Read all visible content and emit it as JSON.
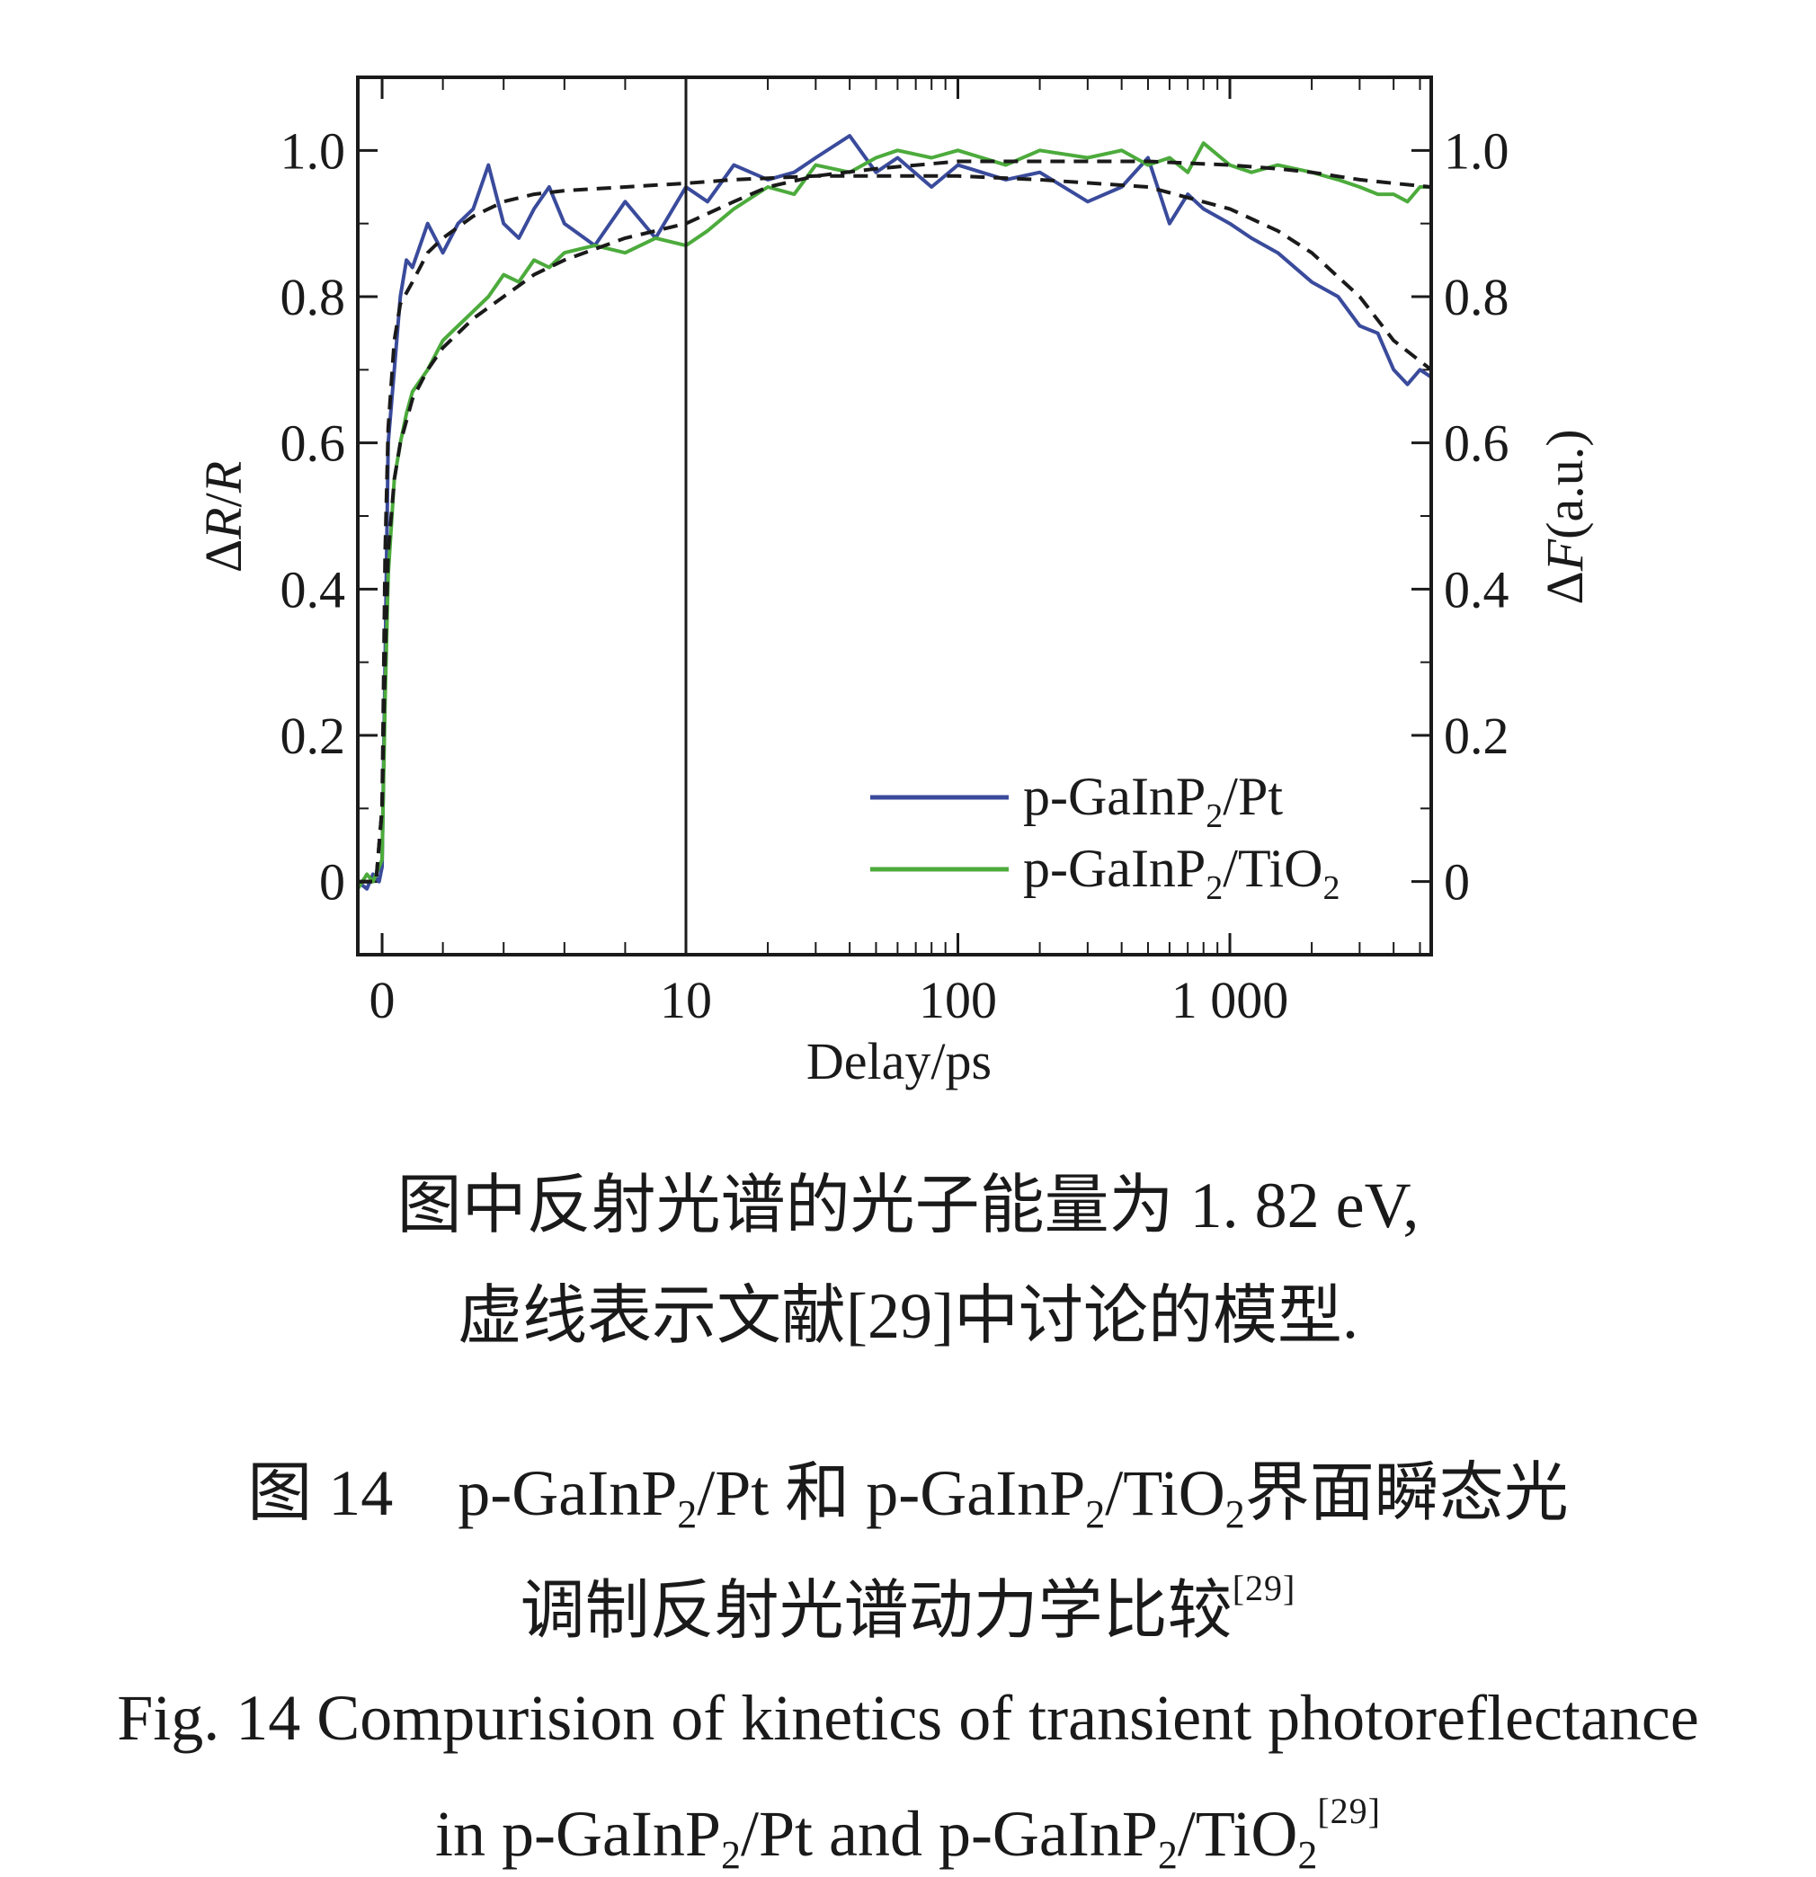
{
  "chart_data": {
    "type": "line",
    "xlabel": "Delay/ps",
    "ylabel_left": {
      "prefix": "Δ",
      "italic": "R",
      "slash": "/",
      "italic2": "R"
    },
    "ylabel_right": {
      "prefix": "Δ",
      "italic": "F",
      "suffix": "(a.u.)"
    },
    "x_axis": {
      "type": "split linear-log",
      "linear_range": [
        -0.8,
        10
      ],
      "log_range": [
        10,
        5500
      ],
      "tick_labels": [
        "0",
        "10",
        "100",
        "1 000"
      ],
      "tick_values": [
        0,
        10,
        100,
        1000
      ]
    },
    "ylim": [
      -0.1,
      1.1
    ],
    "y_ticks": [
      "0",
      "0.2",
      "0.4",
      "0.6",
      "0.8",
      "1.0"
    ],
    "y_tick_values": [
      0,
      0.2,
      0.4,
      0.6,
      0.8,
      1.0
    ],
    "legend_position": "lower-right",
    "series": [
      {
        "name": {
          "a": "p-GaInP",
          "sub": "2",
          "b": "/Pt"
        },
        "color": "#3a4b9c",
        "style": "solid",
        "x": [
          -0.8,
          -0.5,
          -0.3,
          -0.1,
          0.0,
          0.1,
          0.2,
          0.4,
          0.6,
          0.8,
          1.0,
          1.5,
          2.0,
          2.5,
          3.0,
          3.5,
          4.0,
          4.5,
          5.0,
          5.5,
          6.0,
          7.0,
          8.0,
          9.0,
          10,
          12,
          15,
          20,
          25,
          30,
          40,
          50,
          60,
          80,
          100,
          150,
          200,
          300,
          400,
          500,
          600,
          700,
          800,
          1000,
          1200,
          1500,
          2000,
          2500,
          3000,
          3500,
          4000,
          4500,
          5000,
          5500
        ],
        "y": [
          0.0,
          -0.01,
          0.01,
          0.0,
          0.02,
          0.3,
          0.6,
          0.7,
          0.8,
          0.85,
          0.84,
          0.9,
          0.86,
          0.9,
          0.92,
          0.98,
          0.9,
          0.88,
          0.92,
          0.95,
          0.9,
          0.87,
          0.93,
          0.88,
          0.95,
          0.93,
          0.98,
          0.96,
          0.97,
          0.99,
          1.02,
          0.97,
          0.99,
          0.95,
          0.98,
          0.96,
          0.97,
          0.93,
          0.95,
          0.99,
          0.9,
          0.94,
          0.92,
          0.9,
          0.88,
          0.86,
          0.82,
          0.8,
          0.76,
          0.75,
          0.7,
          0.68,
          0.7,
          0.69
        ]
      },
      {
        "name": {
          "a": "p-GaInP",
          "sub": "2",
          "b": "/TiO",
          "sub2": "2"
        },
        "color": "#4cab3c",
        "style": "solid",
        "x": [
          -0.8,
          -0.5,
          -0.3,
          -0.1,
          0.0,
          0.1,
          0.2,
          0.4,
          0.6,
          0.8,
          1.0,
          1.5,
          2.0,
          2.5,
          3.0,
          3.5,
          4.0,
          4.5,
          5.0,
          5.5,
          6.0,
          7.0,
          8.0,
          9.0,
          10,
          12,
          15,
          20,
          25,
          30,
          40,
          50,
          60,
          80,
          100,
          150,
          200,
          300,
          400,
          500,
          600,
          700,
          800,
          1000,
          1200,
          1500,
          2000,
          2500,
          3000,
          3500,
          4000,
          4500,
          5000,
          5500
        ],
        "y": [
          -0.01,
          0.01,
          0.0,
          0.02,
          0.03,
          0.25,
          0.42,
          0.55,
          0.6,
          0.64,
          0.67,
          0.7,
          0.74,
          0.76,
          0.78,
          0.8,
          0.83,
          0.82,
          0.85,
          0.84,
          0.86,
          0.87,
          0.86,
          0.88,
          0.87,
          0.89,
          0.92,
          0.95,
          0.94,
          0.98,
          0.97,
          0.99,
          1.0,
          0.99,
          1.0,
          0.98,
          1.0,
          0.99,
          1.0,
          0.98,
          0.99,
          0.97,
          1.01,
          0.98,
          0.97,
          0.98,
          0.97,
          0.96,
          0.95,
          0.94,
          0.94,
          0.93,
          0.95,
          0.95
        ]
      },
      {
        "name": "",
        "color": "#1a1a1a",
        "style": "dashed",
        "x": [
          -0.8,
          -0.2,
          0.0,
          0.1,
          0.2,
          0.4,
          0.6,
          1.0,
          1.5,
          2.0,
          3.0,
          4.0,
          5.0,
          6.0,
          8.0,
          10,
          15,
          20,
          30,
          50,
          100,
          200,
          500,
          1000,
          1500,
          2000,
          3000,
          4000,
          5500
        ],
        "y": [
          0.0,
          0.0,
          0.1,
          0.45,
          0.62,
          0.74,
          0.79,
          0.82,
          0.86,
          0.88,
          0.91,
          0.93,
          0.94,
          0.945,
          0.95,
          0.955,
          0.96,
          0.962,
          0.965,
          0.965,
          0.965,
          0.96,
          0.95,
          0.92,
          0.89,
          0.86,
          0.8,
          0.74,
          0.7
        ]
      },
      {
        "name": "",
        "color": "#1a1a1a",
        "style": "dashed",
        "x": [
          -0.8,
          -0.2,
          0.0,
          0.1,
          0.2,
          0.4,
          0.6,
          1.0,
          1.5,
          2.0,
          3.0,
          4.0,
          5.0,
          6.0,
          8.0,
          10,
          15,
          20,
          30,
          50,
          100,
          200,
          500,
          1000,
          1500,
          2000,
          3000,
          4000,
          5500
        ],
        "y": [
          0.0,
          0.0,
          0.1,
          0.3,
          0.45,
          0.55,
          0.6,
          0.66,
          0.7,
          0.73,
          0.77,
          0.8,
          0.83,
          0.85,
          0.88,
          0.9,
          0.93,
          0.95,
          0.965,
          0.975,
          0.985,
          0.985,
          0.985,
          0.98,
          0.975,
          0.97,
          0.96,
          0.955,
          0.95
        ]
      }
    ]
  },
  "caption": {
    "note_line1": "图中反射光谱的光子能量为 1. 82 eV,",
    "note_line2": "虚线表示文献[29]中讨论的模型.",
    "cn_title_line1": {
      "num": "图 14",
      "a": "p-GaInP",
      "sub1": "2",
      "b": "/Pt 和 p-GaInP",
      "sub2": "2",
      "c": "/TiO",
      "sub3": "2",
      "d": "界面瞬态光"
    },
    "cn_title_line2": {
      "text": "调制反射光谱动力学比较",
      "ref": "[29]"
    },
    "en_title_line1": "Fig. 14  Compurision of kinetics of transient photoreflectance",
    "en_title_line2": {
      "a": "in p-GaInP",
      "sub1": "2",
      "b": "/Pt and p-GaInP",
      "sub2": "2",
      "c": "/TiO",
      "sub3": "2",
      "ref": "[29]"
    }
  }
}
